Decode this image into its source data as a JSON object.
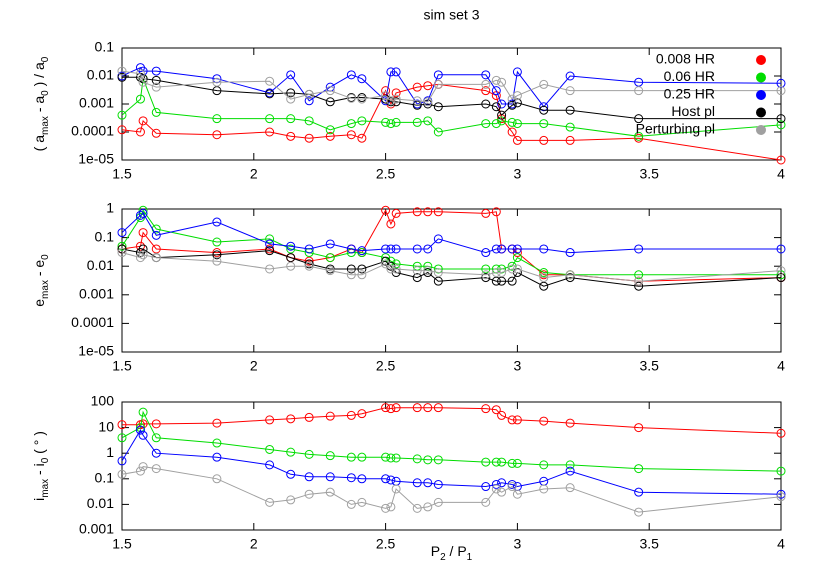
{
  "chart_data": [
    {
      "type": "line",
      "title": "sim set 3",
      "ylabel": [
        {
          "text": "( a"
        },
        {
          "sub": "max"
        },
        {
          "text": " - a"
        },
        {
          "sub": "0"
        },
        {
          "text": " ) / a"
        },
        {
          "sub": "0"
        }
      ],
      "log_y": true,
      "legend": "top-right",
      "x": [
        1.5,
        1.57,
        1.58,
        1.63,
        1.86,
        2.06,
        2.14,
        2.21,
        2.29,
        2.37,
        2.41,
        2.5,
        2.52,
        2.54,
        2.62,
        2.66,
        2.7,
        2.88,
        2.92,
        2.94,
        2.98,
        3.0,
        3.1,
        3.2,
        3.46,
        4.0
      ],
      "xlim": [
        1.5,
        4
      ],
      "xticks": [
        1.5,
        2,
        2.5,
        3,
        3.5,
        4
      ],
      "ylim": [
        1e-05,
        0.1
      ],
      "yticks": [
        {
          "value": 1e-05,
          "label": "1e-05"
        },
        0.0001,
        0.001,
        0.01,
        0.1
      ],
      "series": [
        {
          "name": "0.008 HR",
          "color": "#ff0000",
          "values": [
            0.00012,
            0.0001,
            0.00025,
            9e-05,
            8e-05,
            0.0001,
            7e-05,
            6e-05,
            7e-05,
            8e-05,
            6e-05,
            0.003,
            0.001,
            0.0025,
            0.004,
            0.0045,
            0.005,
            0.003,
            0.002,
            0.0003,
            0.0001,
            5e-05,
            5e-05,
            5e-05,
            6e-05,
            1e-05
          ]
        },
        {
          "name": "0.06 HR",
          "color": "#00dd00",
          "values": [
            0.0004,
            0.0015,
            0.008,
            0.0005,
            0.0003,
            0.0003,
            0.0003,
            0.00025,
            0.00012,
            0.0002,
            0.00025,
            0.00022,
            0.0002,
            0.00022,
            0.00022,
            0.00025,
            0.0001,
            0.0002,
            0.0002,
            0.00025,
            0.00022,
            0.0002,
            0.0002,
            0.00015,
            7e-05,
            0.00018
          ]
        },
        {
          "name": "0.25 HR",
          "color": "#0000ff",
          "values": [
            0.01,
            0.02,
            0.015,
            0.015,
            0.008,
            0.0025,
            0.011,
            0.0013,
            0.004,
            0.011,
            0.008,
            0.0013,
            0.014,
            0.014,
            0.001,
            0.0013,
            0.011,
            0.011,
            0.003,
            0.001,
            0.001,
            0.014,
            0.0008,
            0.01,
            0.006,
            0.0055
          ]
        },
        {
          "name": "Host pl",
          "color": "#000000",
          "values": [
            0.009,
            0.009,
            0.008,
            0.007,
            0.003,
            0.0023,
            0.0025,
            0.0022,
            0.0012,
            0.0017,
            0.0017,
            0.0015,
            0.0012,
            0.0012,
            0.0009,
            0.001,
            0.0008,
            0.001,
            0.0008,
            0.0004,
            0.0009,
            0.0011,
            0.0006,
            0.0006,
            0.0003,
            0.0003
          ]
        },
        {
          "name": "Perturbing pl",
          "color": "#a0a0a0",
          "values": [
            0.015,
            0.012,
            0.006,
            0.004,
            0.006,
            0.0065,
            0.0015,
            0.0022,
            0.003,
            0.0016,
            0.0015,
            0.002,
            0.0013,
            0.0015,
            0.0013,
            0.0012,
            0.005,
            0.005,
            0.007,
            0.006,
            0.0015,
            0.002,
            0.005,
            0.003,
            0.003,
            0.003
          ]
        }
      ]
    },
    {
      "type": "line",
      "ylabel": [
        {
          "text": "e"
        },
        {
          "sub": "max"
        },
        {
          "text": " - e"
        },
        {
          "sub": "0"
        }
      ],
      "log_y": true,
      "x": [
        1.5,
        1.57,
        1.58,
        1.63,
        1.86,
        2.06,
        2.14,
        2.21,
        2.29,
        2.37,
        2.41,
        2.5,
        2.52,
        2.54,
        2.62,
        2.66,
        2.7,
        2.88,
        2.92,
        2.94,
        2.98,
        3.0,
        3.1,
        3.2,
        3.46,
        4.0
      ],
      "xlim": [
        1.5,
        4
      ],
      "xticks": [
        1.5,
        2,
        2.5,
        3,
        3.5,
        4
      ],
      "ylim": [
        1e-05,
        1
      ],
      "yticks": [
        {
          "value": 1e-05,
          "label": "1e-05"
        },
        0.0001,
        0.001,
        0.01,
        0.1,
        1
      ],
      "series": [
        {
          "color": "#ff0000",
          "values": [
            0.04,
            0.05,
            0.15,
            0.04,
            0.03,
            0.04,
            0.02,
            0.015,
            0.02,
            0.04,
            0.03,
            0.9,
            0.3,
            0.7,
            0.8,
            0.8,
            0.8,
            0.7,
            0.8,
            0.04,
            0.04,
            0.03,
            0.005,
            0.005,
            0.003,
            0.004
          ]
        },
        {
          "color": "#00dd00",
          "values": [
            0.05,
            0.5,
            0.9,
            0.2,
            0.07,
            0.09,
            0.04,
            0.03,
            0.02,
            0.03,
            0.03,
            0.02,
            0.015,
            0.012,
            0.01,
            0.01,
            0.008,
            0.008,
            0.008,
            0.008,
            0.01,
            0.02,
            0.006,
            0.005,
            0.005,
            0.005
          ]
        },
        {
          "color": "#0000ff",
          "values": [
            0.15,
            0.6,
            0.7,
            0.12,
            0.35,
            0.06,
            0.05,
            0.04,
            0.06,
            0.04,
            0.035,
            0.04,
            0.04,
            0.04,
            0.04,
            0.04,
            0.09,
            0.03,
            0.04,
            0.04,
            0.04,
            0.04,
            0.04,
            0.03,
            0.04,
            0.04
          ]
        },
        {
          "color": "#000000",
          "values": [
            0.04,
            0.03,
            0.04,
            0.02,
            0.025,
            0.035,
            0.02,
            0.012,
            0.008,
            0.008,
            0.008,
            0.015,
            0.01,
            0.006,
            0.004,
            0.006,
            0.003,
            0.004,
            0.003,
            0.003,
            0.003,
            0.006,
            0.002,
            0.004,
            0.002,
            0.004
          ]
        },
        {
          "color": "#a0a0a0",
          "values": [
            0.03,
            0.02,
            0.025,
            0.02,
            0.015,
            0.008,
            0.01,
            0.01,
            0.007,
            0.005,
            0.005,
            0.012,
            0.008,
            0.008,
            0.007,
            0.007,
            0.006,
            0.005,
            0.006,
            0.006,
            0.008,
            0.008,
            0.004,
            0.005,
            0.003,
            0.007
          ]
        }
      ]
    },
    {
      "type": "line",
      "ylabel": [
        {
          "text": "i"
        },
        {
          "sub": "max"
        },
        {
          "text": " - i"
        },
        {
          "sub": "0"
        },
        {
          "text": " ( ° )"
        }
      ],
      "xlabel": [
        {
          "text": "P"
        },
        {
          "sub": "2"
        },
        {
          "text": " / P"
        },
        {
          "sub": "1"
        }
      ],
      "log_y": true,
      "x": [
        1.5,
        1.57,
        1.58,
        1.63,
        1.86,
        2.06,
        2.14,
        2.21,
        2.29,
        2.37,
        2.41,
        2.5,
        2.52,
        2.54,
        2.62,
        2.66,
        2.7,
        2.88,
        2.92,
        2.94,
        2.98,
        3.0,
        3.1,
        3.2,
        3.46,
        4.0
      ],
      "xlim": [
        1.5,
        4
      ],
      "xticks": [
        1.5,
        2,
        2.5,
        3,
        3.5,
        4
      ],
      "ylim": [
        0.001,
        100
      ],
      "yticks": [
        0.001,
        0.01,
        0.1,
        1,
        10,
        100
      ],
      "series": [
        {
          "color": "#ff0000",
          "values": [
            13,
            13,
            14,
            14,
            15,
            20,
            22,
            25,
            28,
            30,
            35,
            60,
            55,
            60,
            60,
            60,
            60,
            55,
            50,
            30,
            20,
            20,
            18,
            15,
            10,
            6
          ]
        },
        {
          "color": "#00dd00",
          "values": [
            4,
            10,
            40,
            4,
            2.5,
            1.4,
            1.1,
            0.9,
            0.8,
            0.7,
            0.7,
            0.7,
            0.65,
            0.65,
            0.6,
            0.55,
            0.55,
            0.45,
            0.45,
            0.45,
            0.4,
            0.4,
            0.35,
            0.35,
            0.25,
            0.2
          ]
        },
        {
          "color": "#0000ff",
          "values": [
            0.5,
            8,
            5,
            1,
            0.7,
            0.35,
            0.15,
            0.12,
            0.12,
            0.11,
            0.1,
            0.1,
            0.09,
            0.08,
            0.07,
            0.07,
            0.06,
            0.05,
            0.06,
            0.07,
            0.06,
            0.05,
            0.08,
            0.2,
            0.03,
            0.025
          ]
        },
        {
          "color": "#a0a0a0",
          "values": [
            0.15,
            0.2,
            0.3,
            0.25,
            0.1,
            0.012,
            0.015,
            0.025,
            0.03,
            0.01,
            0.012,
            0.007,
            0.008,
            0.04,
            0.007,
            0.008,
            0.012,
            0.012,
            0.04,
            0.03,
            0.05,
            0.025,
            0.04,
            0.045,
            0.005,
            0.02
          ]
        }
      ]
    }
  ]
}
